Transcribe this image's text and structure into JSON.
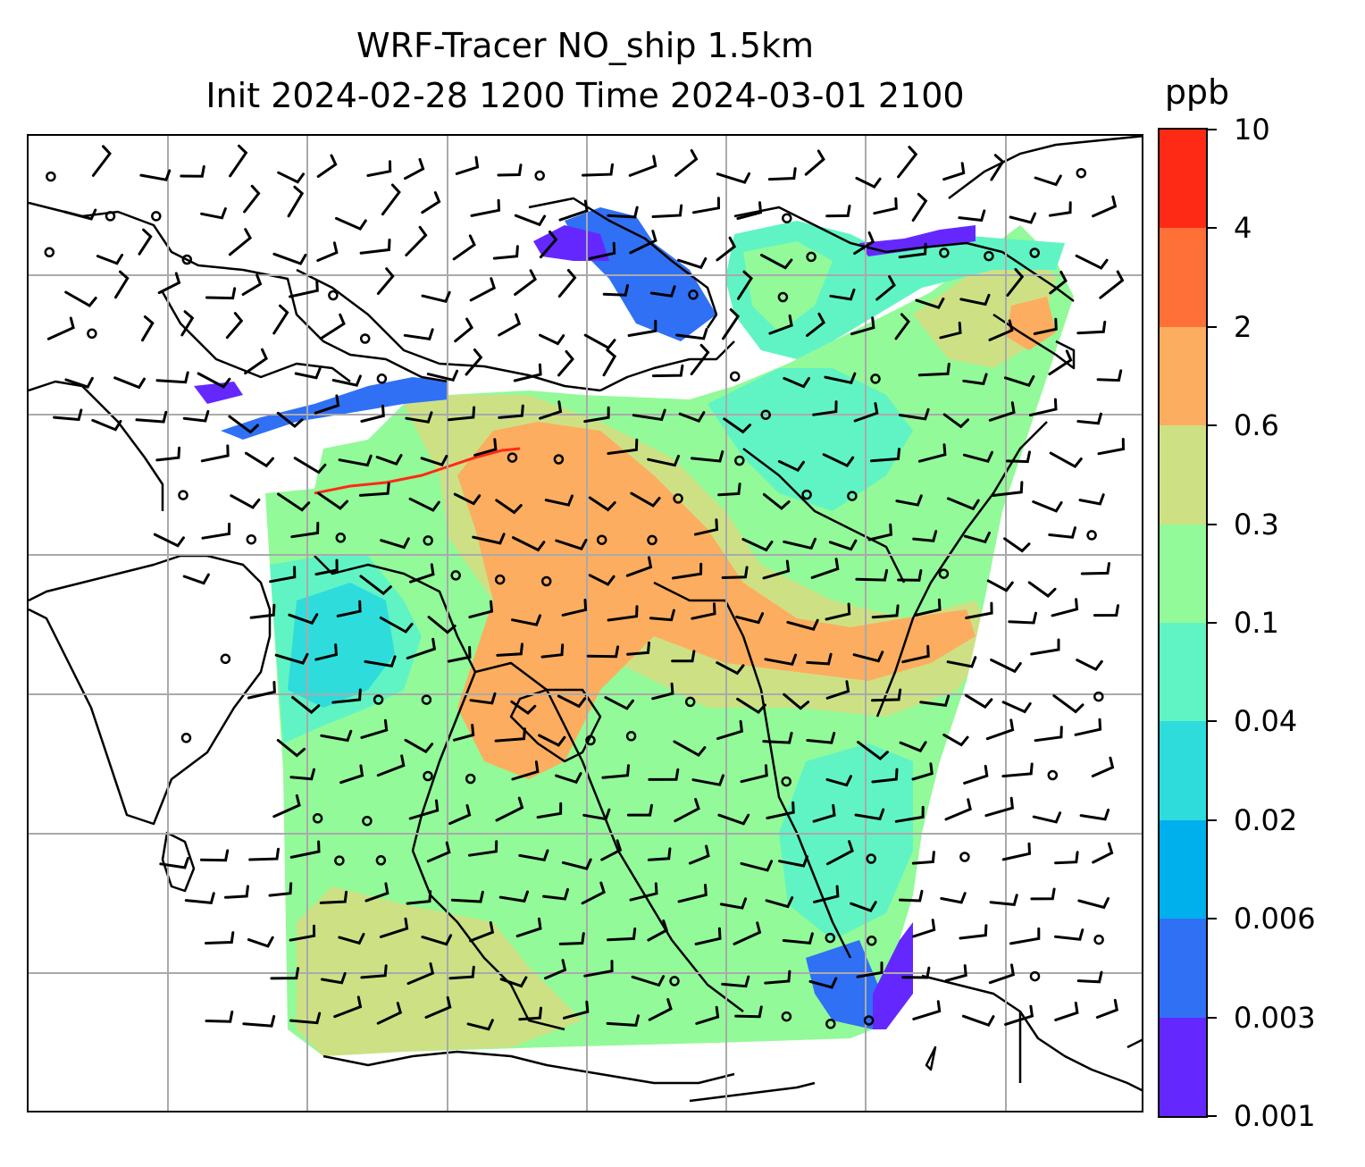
{
  "title_line1": "WRF-Tracer NO_ship 1.5km",
  "title_line2": "Init 2024-02-28 1200 Time 2024-03-01 2100",
  "colorbar": {
    "unit": "ppb",
    "levels": [
      "0.001",
      "0.003",
      "0.006",
      "0.02",
      "0.04",
      "0.1",
      "0.3",
      "0.6",
      "2",
      "4",
      "10"
    ],
    "colors": [
      "#6428ff",
      "#3070f5",
      "#00b0ec",
      "#2fdcdc",
      "#60f4c4",
      "#92fa98",
      "#cde184",
      "#fcad5f",
      "#ff7038",
      "#ff2a15"
    ]
  },
  "map": {
    "field": "NO_ship",
    "grid": "on",
    "coastlines": "on",
    "wind_barbs": "on"
  }
}
